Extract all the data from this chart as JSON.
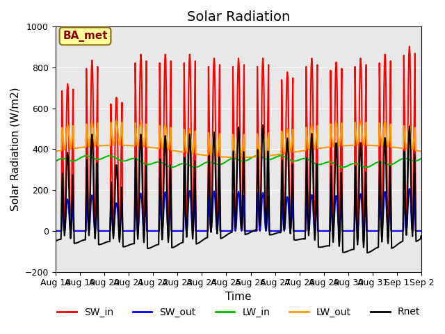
{
  "title": "Solar Radiation",
  "xlabel": "Time",
  "ylabel": "Solar Radiation (W/m2)",
  "ylim": [
    -200,
    1000
  ],
  "site_label": "BA_met",
  "bg_color": "#e8e8e8",
  "x_tick_labels": [
    "Aug 18",
    "Aug 19",
    "Aug 20",
    "Aug 21",
    "Aug 22",
    "Aug 23",
    "Aug 24",
    "Aug 25",
    "Aug 26",
    "Aug 27",
    "Aug 28",
    "Aug 29",
    "Aug 30",
    "Aug 31",
    "Sep 1",
    "Sep 2"
  ],
  "series": {
    "SW_in": {
      "color": "#ff0000",
      "lw": 1.5
    },
    "SW_out": {
      "color": "#0000ff",
      "lw": 1.5
    },
    "LW_in": {
      "color": "#00bb00",
      "lw": 1.5
    },
    "LW_out": {
      "color": "#ff9900",
      "lw": 1.5
    },
    "Rnet": {
      "color": "#000000",
      "lw": 1.5
    }
  },
  "legend_order": [
    "SW_in",
    "SW_out",
    "LW_in",
    "LW_out",
    "Rnet"
  ],
  "title_fontsize": 14,
  "label_fontsize": 11,
  "tick_fontsize": 9,
  "sw_peaks": [
    750,
    870,
    680,
    900,
    900,
    900,
    880,
    880,
    880,
    810,
    880,
    860,
    880,
    900,
    940,
    0
  ]
}
